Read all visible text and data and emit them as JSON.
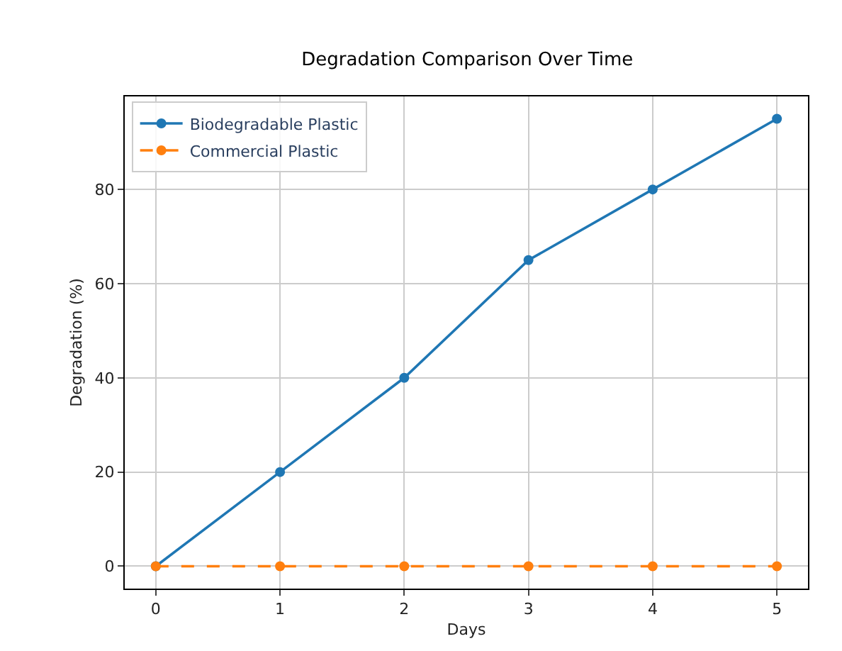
{
  "chart_data": {
    "type": "line",
    "title": "Degradation Comparison Over Time",
    "xlabel": "Days",
    "ylabel": "Degradation (%)",
    "x": [
      0,
      1,
      2,
      3,
      4,
      5
    ],
    "series": [
      {
        "name": "Biodegradable Plastic",
        "color": "#1f77b4",
        "values": [
          0,
          20,
          40,
          65,
          80,
          95
        ],
        "line_style": "solid"
      },
      {
        "name": "Commercial Plastic",
        "color": "#ff7f0e",
        "values": [
          0,
          0,
          0,
          0,
          0,
          0
        ],
        "line_style": "dashed"
      }
    ],
    "xlim": [
      -0.25,
      5.25
    ],
    "xticks": [
      0,
      1,
      2,
      3,
      4,
      5
    ],
    "ylim": [
      -4.75,
      99.75
    ],
    "yticks": [
      0,
      20,
      40,
      60,
      80
    ],
    "grid": true,
    "legend": "top left",
    "marker": "circle"
  }
}
